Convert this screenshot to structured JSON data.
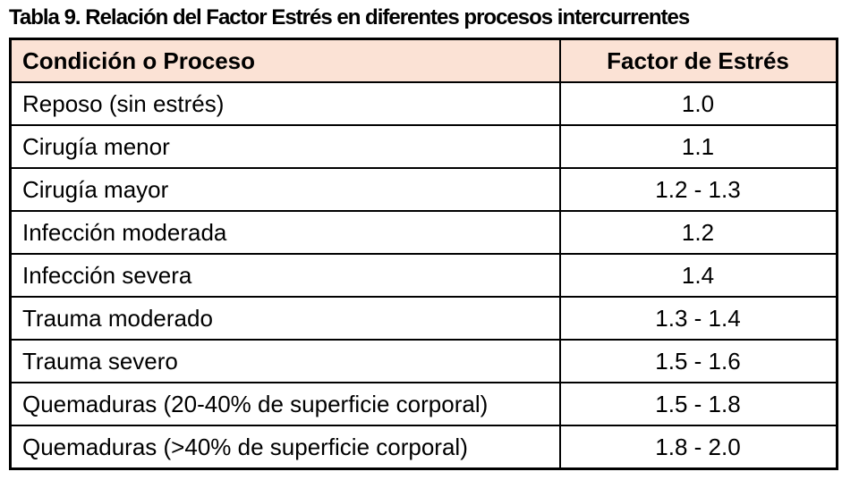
{
  "page": {
    "title": "Tabla 9. Relación del Factor Estrés en diferentes procesos intercurrentes"
  },
  "colors": {
    "header_background": "#FBE2D5",
    "border": "#000000",
    "text": "#000000",
    "page_background": "#FFFFFF"
  },
  "table": {
    "headers": {
      "condition": "Condición o Proceso",
      "factor": "Factor de Estrés"
    },
    "rows": [
      {
        "condition": "Reposo (sin estrés)",
        "factor": "1.0"
      },
      {
        "condition": "Cirugía menor",
        "factor": "1.1"
      },
      {
        "condition": "Cirugía mayor",
        "factor": "1.2 - 1.3"
      },
      {
        "condition": "Infección moderada",
        "factor": "1.2"
      },
      {
        "condition": "Infección severa",
        "factor": "1.4"
      },
      {
        "condition": "Trauma moderado",
        "factor": "1.3 - 1.4"
      },
      {
        "condition": "Trauma severo",
        "factor": "1.5 - 1.6"
      },
      {
        "condition": "Quemaduras (20-40% de superficie corporal)",
        "factor": "1.5 - 1.8"
      },
      {
        "condition": "Quemaduras (>40% de superficie corporal)",
        "factor": "1.8 - 2.0"
      }
    ]
  }
}
